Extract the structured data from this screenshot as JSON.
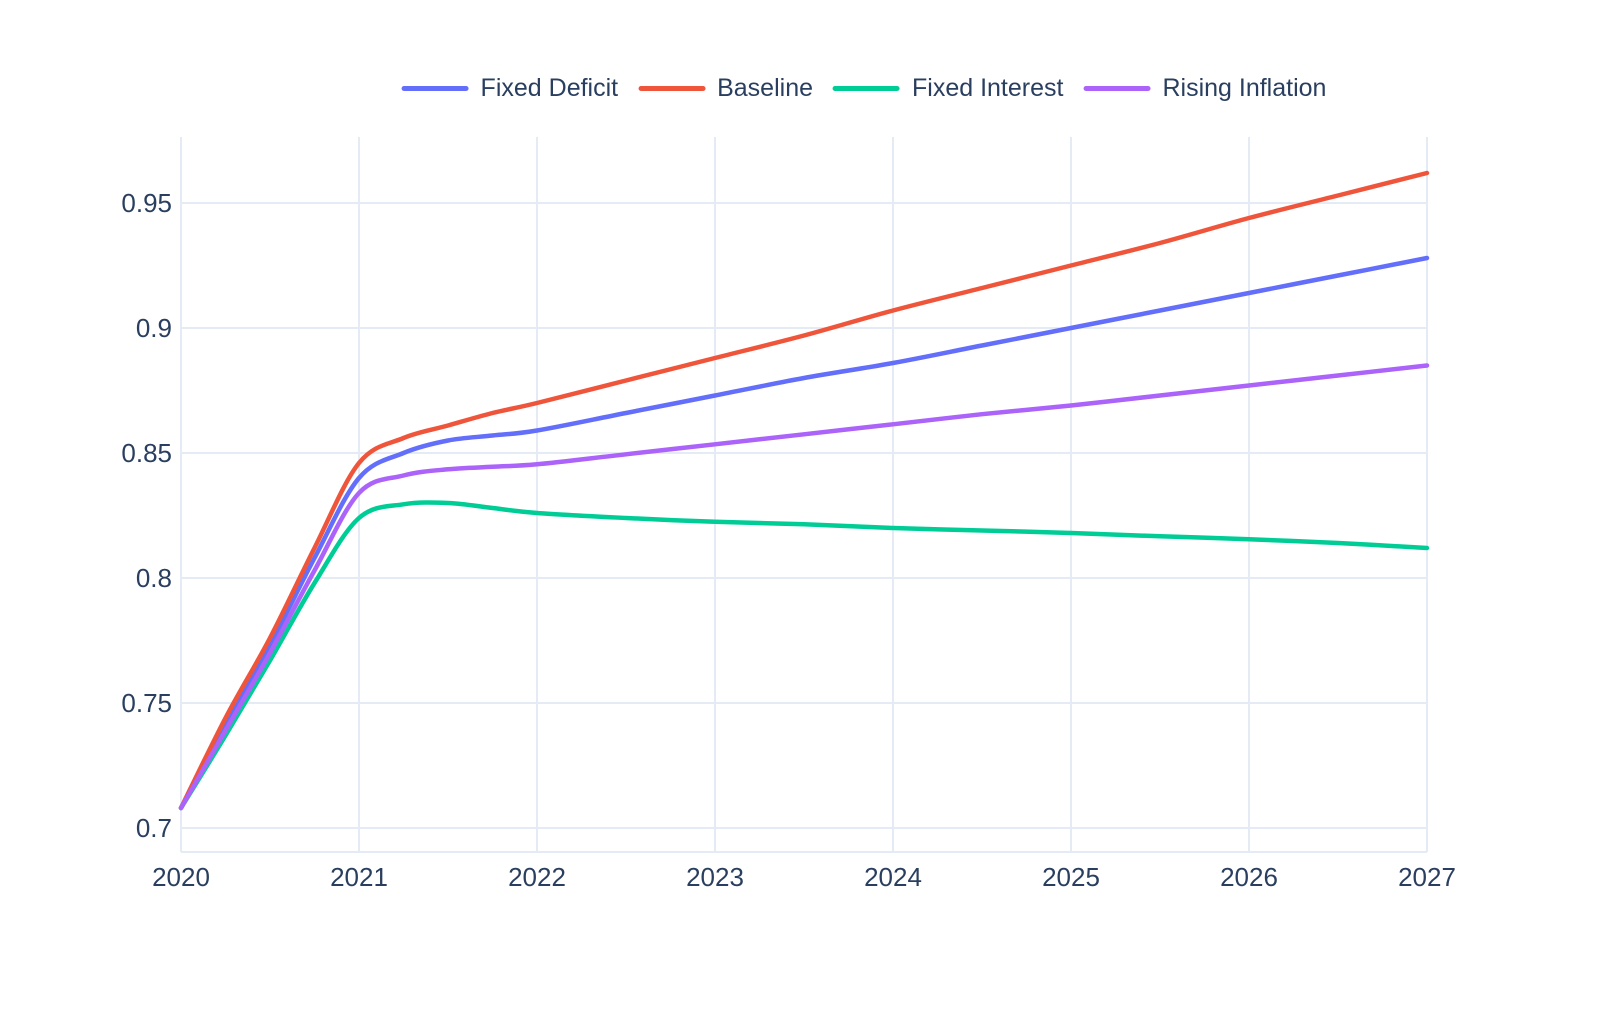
{
  "chart_data": {
    "type": "line",
    "title": "",
    "xlabel": "",
    "ylabel": "",
    "grid": true,
    "legend_position": "top-center",
    "x_range": [
      2020,
      2027
    ],
    "y_range": [
      0.6904,
      0.9764
    ],
    "x_tick_values": [
      2020,
      2021,
      2022,
      2023,
      2024,
      2025,
      2026,
      2027
    ],
    "x_tick_labels": [
      "2020",
      "2021",
      "2022",
      "2023",
      "2024",
      "2025",
      "2026",
      "2027"
    ],
    "y_tick_values": [
      0.7,
      0.75,
      0.8,
      0.85,
      0.9,
      0.95
    ],
    "y_tick_labels": [
      "0.7",
      "0.75",
      "0.8",
      "0.85",
      "0.9",
      "0.95"
    ],
    "x": [
      2020,
      2020.25,
      2020.5,
      2020.75,
      2021,
      2021.25,
      2021.5,
      2021.75,
      2022,
      2022.5,
      2023,
      2023.5,
      2024,
      2024.5,
      2025,
      2025.5,
      2026,
      2026.5,
      2027
    ],
    "series": [
      {
        "name": "Fixed Deficit",
        "color": "#636efa",
        "values": [
          0.708,
          0.741,
          0.773,
          0.808,
          0.84,
          0.85,
          0.855,
          0.857,
          0.859,
          0.866,
          0.873,
          0.88,
          0.886,
          0.893,
          0.9,
          0.907,
          0.914,
          0.921,
          0.928
        ]
      },
      {
        "name": "Baseline",
        "color": "#ef553b",
        "values": [
          0.708,
          0.744,
          0.776,
          0.812,
          0.846,
          0.856,
          0.861,
          0.866,
          0.87,
          0.879,
          0.888,
          0.897,
          0.907,
          0.916,
          0.925,
          0.934,
          0.944,
          0.953,
          0.962
        ]
      },
      {
        "name": "Fixed Interest",
        "color": "#00cc96",
        "values": [
          0.708,
          0.737,
          0.767,
          0.798,
          0.824,
          0.8295,
          0.83,
          0.828,
          0.826,
          0.824,
          0.8225,
          0.8215,
          0.82,
          0.819,
          0.818,
          0.8167,
          0.8155,
          0.814,
          0.812
        ]
      },
      {
        "name": "Rising Inflation",
        "color": "#ab63fa",
        "values": [
          0.708,
          0.739,
          0.77,
          0.803,
          0.834,
          0.841,
          0.8435,
          0.8445,
          0.8455,
          0.8495,
          0.8535,
          0.8575,
          0.8615,
          0.8655,
          0.869,
          0.873,
          0.877,
          0.881,
          0.885
        ]
      }
    ]
  },
  "colors": {
    "text": "#2a3f5f",
    "grid": "#e5ebf5",
    "background": "#ffffff"
  }
}
